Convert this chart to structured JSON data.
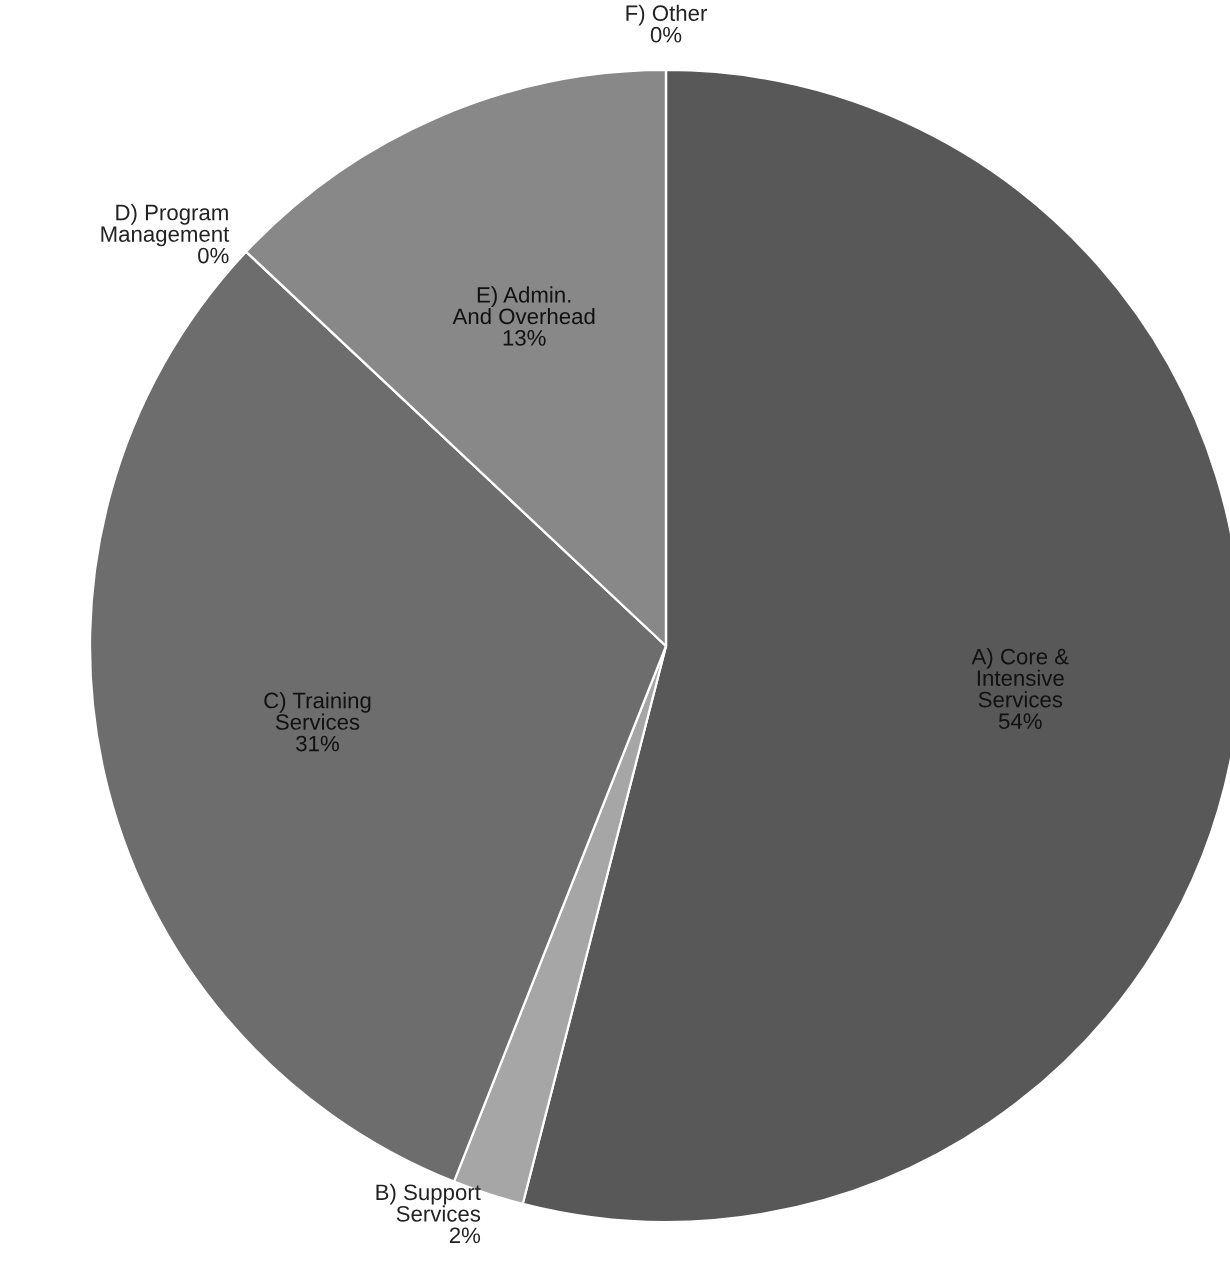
{
  "chart_data": {
    "type": "pie",
    "categories": [
      "A) Core & Intensive Services",
      "B) Support Services",
      "C) Training Services",
      "D) Program Management",
      "E) Admin. And Overhead",
      "F) Other"
    ],
    "values": [
      54,
      2,
      31,
      0,
      13,
      0
    ],
    "colors": [
      "#585858",
      "#a6a6a6",
      "#6d6d6d",
      "#404040",
      "#888888",
      "#bfbfbf"
    ],
    "value_labels": [
      "54%",
      "2%",
      "31%",
      "0%",
      "13%",
      "0%"
    ]
  }
}
